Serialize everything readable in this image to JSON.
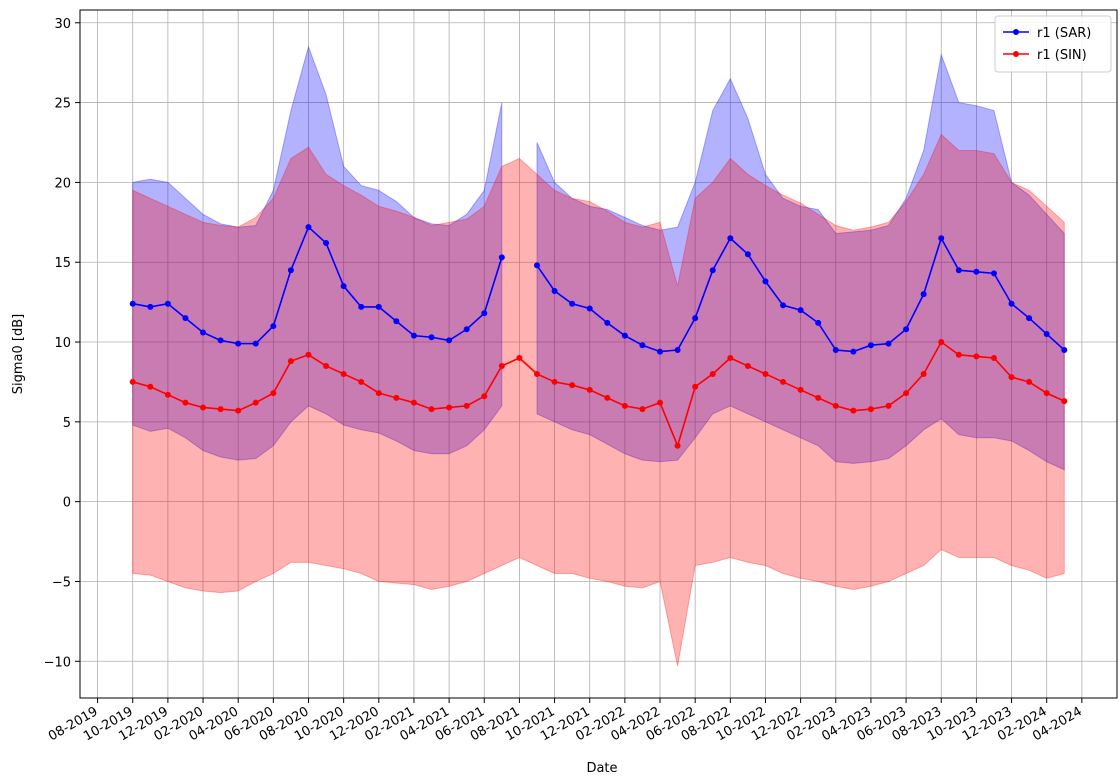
{
  "chart_data": {
    "type": "line-band",
    "xlabel": "Date",
    "ylabel": "Sigma0 [dB]",
    "x": [
      "10-2019",
      "11-2019",
      "12-2019",
      "01-2020",
      "02-2020",
      "03-2020",
      "04-2020",
      "05-2020",
      "06-2020",
      "07-2020",
      "08-2020",
      "09-2020",
      "10-2020",
      "11-2020",
      "12-2020",
      "01-2021",
      "02-2021",
      "03-2021",
      "04-2021",
      "05-2021",
      "06-2021",
      "07-2021",
      "08-2021",
      "09-2021",
      "10-2021",
      "11-2021",
      "12-2021",
      "01-2022",
      "02-2022",
      "03-2022",
      "04-2022",
      "05-2022",
      "06-2022",
      "07-2022",
      "08-2022",
      "09-2022",
      "10-2022",
      "11-2022",
      "12-2022",
      "01-2023",
      "02-2023",
      "03-2023",
      "04-2023",
      "05-2023",
      "06-2023",
      "07-2023",
      "08-2023",
      "09-2023",
      "10-2023",
      "11-2023",
      "12-2023",
      "01-2024",
      "02-2024",
      "03-2024"
    ],
    "series": [
      {
        "name": "r1 (SAR)",
        "color": "#0000ff",
        "values": [
          12.4,
          12.2,
          12.4,
          11.5,
          10.6,
          10.1,
          9.9,
          9.9,
          11.0,
          14.5,
          17.2,
          16.2,
          13.5,
          12.2,
          12.2,
          11.3,
          10.4,
          10.3,
          10.1,
          10.8,
          11.8,
          15.3,
          null,
          14.8,
          13.2,
          12.4,
          12.1,
          11.2,
          10.4,
          9.8,
          9.4,
          9.5,
          11.5,
          14.5,
          16.5,
          15.5,
          13.8,
          12.3,
          12.0,
          11.2,
          9.5,
          9.4,
          9.8,
          9.9,
          10.8,
          13.0,
          16.5,
          14.5,
          14.4,
          14.3,
          12.4,
          11.5,
          10.5,
          9.5
        ],
        "upper": [
          20.0,
          20.2,
          20.0,
          19.0,
          18.0,
          17.4,
          17.2,
          17.3,
          19.5,
          24.5,
          28.5,
          25.5,
          21.0,
          19.8,
          19.5,
          18.8,
          17.8,
          17.4,
          17.3,
          18.0,
          19.5,
          25.0,
          null,
          22.5,
          20.0,
          19.0,
          18.5,
          18.3,
          17.8,
          17.3,
          17.0,
          17.2,
          20.0,
          24.5,
          26.5,
          24.0,
          20.5,
          19.0,
          18.5,
          18.3,
          16.8,
          16.9,
          17.0,
          17.3,
          19.0,
          22.0,
          28.0,
          25.0,
          24.8,
          24.5,
          20.0,
          19.2,
          18.0,
          16.8
        ],
        "lower": [
          4.8,
          4.4,
          4.6,
          4.0,
          3.2,
          2.8,
          2.6,
          2.7,
          3.5,
          5.0,
          6.0,
          5.5,
          4.8,
          4.5,
          4.3,
          3.8,
          3.2,
          3.0,
          3.0,
          3.5,
          4.5,
          6.0,
          null,
          5.5,
          5.0,
          4.5,
          4.2,
          3.6,
          3.0,
          2.6,
          2.5,
          2.6,
          4.0,
          5.5,
          6.0,
          5.5,
          5.0,
          4.5,
          4.0,
          3.5,
          2.5,
          2.4,
          2.5,
          2.7,
          3.5,
          4.5,
          5.2,
          4.2,
          4.0,
          4.0,
          3.8,
          3.2,
          2.5,
          2.0
        ]
      },
      {
        "name": "r1 (SIN)",
        "color": "#ff0000",
        "values": [
          7.5,
          7.2,
          6.7,
          6.2,
          5.9,
          5.8,
          5.7,
          6.2,
          6.8,
          8.8,
          9.2,
          8.5,
          8.0,
          7.5,
          6.8,
          6.5,
          6.2,
          5.8,
          5.9,
          6.0,
          6.6,
          8.5,
          9.0,
          8.0,
          7.5,
          7.3,
          7.0,
          6.5,
          6.0,
          5.8,
          6.2,
          3.5,
          7.2,
          8.0,
          9.0,
          8.5,
          8.0,
          7.5,
          7.0,
          6.5,
          6.0,
          5.7,
          5.8,
          6.0,
          6.8,
          8.0,
          10.0,
          9.2,
          9.1,
          9.0,
          7.8,
          7.5,
          6.8,
          6.3
        ],
        "upper": [
          19.5,
          19.0,
          18.5,
          18.0,
          17.5,
          17.3,
          17.2,
          17.8,
          19.0,
          21.5,
          22.2,
          20.5,
          19.8,
          19.2,
          18.5,
          18.2,
          17.8,
          17.3,
          17.5,
          17.7,
          18.5,
          21.0,
          21.5,
          20.5,
          19.5,
          19.0,
          18.8,
          18.2,
          17.5,
          17.2,
          17.5,
          13.5,
          19.0,
          20.0,
          21.5,
          20.5,
          19.8,
          19.2,
          18.7,
          18.0,
          17.3,
          17.0,
          17.2,
          17.5,
          18.8,
          20.5,
          23.0,
          22.0,
          22.0,
          21.8,
          20.0,
          19.5,
          18.5,
          17.5
        ],
        "lower": [
          -4.5,
          -4.6,
          -5.0,
          -5.4,
          -5.6,
          -5.7,
          -5.6,
          -5.0,
          -4.5,
          -3.8,
          -3.8,
          -4.0,
          -4.2,
          -4.5,
          -5.0,
          -5.1,
          -5.2,
          -5.5,
          -5.3,
          -5.0,
          -4.5,
          -4.0,
          -3.5,
          -4.0,
          -4.5,
          -4.5,
          -4.8,
          -5.0,
          -5.3,
          -5.4,
          -5.0,
          -10.3,
          -4.0,
          -3.8,
          -3.5,
          -3.8,
          -4.0,
          -4.5,
          -4.8,
          -5.0,
          -5.3,
          -5.5,
          -5.3,
          -5.0,
          -4.5,
          -4.0,
          -3.0,
          -3.5,
          -3.5,
          -3.5,
          -4.0,
          -4.3,
          -4.8,
          -4.5
        ]
      }
    ],
    "xlim": [
      "07-2019",
      "06-2024"
    ],
    "xticks": [
      "08-2019",
      "10-2019",
      "12-2019",
      "02-2020",
      "04-2020",
      "06-2020",
      "08-2020",
      "10-2020",
      "12-2020",
      "02-2021",
      "04-2021",
      "06-2021",
      "08-2021",
      "10-2021",
      "12-2021",
      "02-2022",
      "04-2022",
      "06-2022",
      "08-2022",
      "10-2022",
      "12-2022",
      "02-2023",
      "04-2023",
      "06-2023",
      "08-2023",
      "10-2023",
      "12-2023",
      "02-2024",
      "04-2024"
    ],
    "ylim": [
      -12.3,
      30.8
    ],
    "yticks": [
      {
        "value": -10,
        "label": "−10"
      },
      {
        "value": -5,
        "label": "−5"
      },
      0,
      5,
      10,
      15,
      20,
      25,
      30
    ],
    "grid": true,
    "legend": "upper right"
  }
}
